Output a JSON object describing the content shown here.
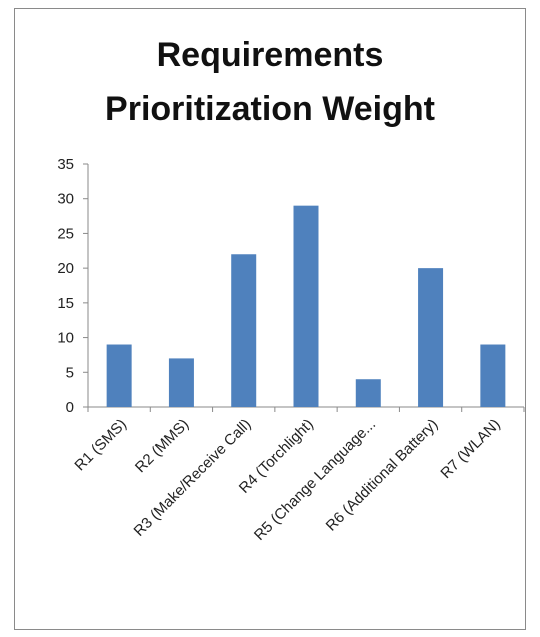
{
  "chart_data": {
    "type": "bar",
    "title_lines": [
      "Requirements",
      "Prioritization Weight"
    ],
    "categories": [
      "R1 (SMS)",
      "R2 (MMS)",
      "R3 (Make/Receive Call)",
      "R4 (Torchlight)",
      "R5 (Change Language...",
      "R6 (Additional Battery)",
      "R7 (WLAN)"
    ],
    "values": [
      9,
      7,
      22,
      29,
      4,
      20,
      9
    ],
    "ylim": [
      0,
      35
    ],
    "yticks": [
      0,
      5,
      10,
      15,
      20,
      25,
      30,
      35
    ],
    "xlabel": "",
    "ylabel": "",
    "grid": false,
    "legend": "none",
    "bar_color": "#4f81bd"
  }
}
